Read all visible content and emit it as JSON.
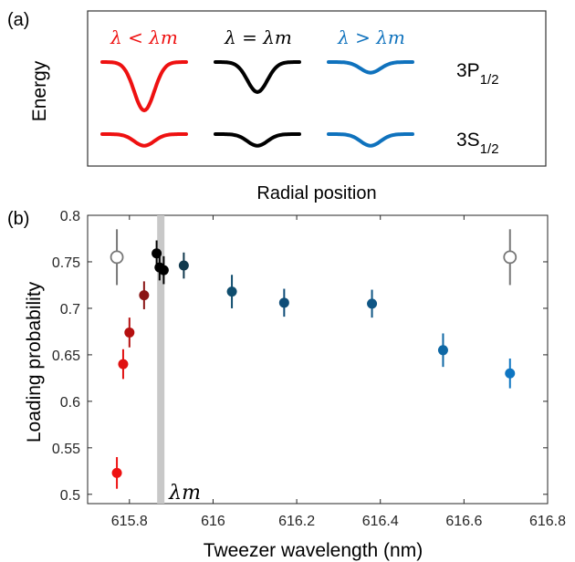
{
  "panel_a": {
    "tag": "(a)",
    "ylabel": "Energy",
    "xlabel": "Radial position",
    "columns": [
      {
        "label": "λ < λm",
        "color": "#ee1111",
        "depth_p": 1.0,
        "depth_s": 0.6
      },
      {
        "label": "λ = λm",
        "color": "#000000",
        "depth_p": 0.62,
        "depth_s": 0.6
      },
      {
        "label": "λ > λm",
        "color": "#0f72bd",
        "depth_p": 0.22,
        "depth_s": 0.6
      }
    ],
    "level_labels": [
      {
        "main": "3P",
        "sub": "1/2"
      },
      {
        "main": "3S",
        "sub": "1/2"
      }
    ]
  },
  "chart_data": {
    "type": "scatter",
    "panel_tag": "(b)",
    "xlabel": "Tweezer wavelength (nm)",
    "ylabel": "Loading probability",
    "xlim": [
      615.7,
      616.8
    ],
    "ylim": [
      0.49,
      0.8
    ],
    "xticks": [
      "615.8",
      "616",
      "616.2",
      "616.4",
      "616.6",
      "616.8"
    ],
    "yticks": [
      "0.5",
      "0.55",
      "0.6",
      "0.65",
      "0.7",
      "0.75",
      "0.8"
    ],
    "marker_label": "λm",
    "marker_x": 615.875,
    "points": [
      {
        "x": 615.77,
        "y": 0.523,
        "err": 0.017,
        "color": "#ee1111",
        "filled": true
      },
      {
        "x": 615.785,
        "y": 0.64,
        "err": 0.016,
        "color": "#e01010",
        "filled": true
      },
      {
        "x": 615.8,
        "y": 0.674,
        "err": 0.016,
        "color": "#b51010",
        "filled": true
      },
      {
        "x": 615.835,
        "y": 0.714,
        "err": 0.015,
        "color": "#8a1515",
        "filled": true
      },
      {
        "x": 615.865,
        "y": 0.759,
        "err": 0.014,
        "color": "#000000",
        "filled": true
      },
      {
        "x": 615.872,
        "y": 0.744,
        "err": 0.014,
        "color": "#000000",
        "filled": true
      },
      {
        "x": 615.882,
        "y": 0.741,
        "err": 0.015,
        "color": "#000000",
        "filled": true
      },
      {
        "x": 615.93,
        "y": 0.746,
        "err": 0.014,
        "color": "#123a4e",
        "filled": true
      },
      {
        "x": 616.045,
        "y": 0.718,
        "err": 0.018,
        "color": "#0f4d6e",
        "filled": true
      },
      {
        "x": 616.17,
        "y": 0.706,
        "err": 0.015,
        "color": "#0f4d78",
        "filled": true
      },
      {
        "x": 616.38,
        "y": 0.705,
        "err": 0.015,
        "color": "#0f5685",
        "filled": true
      },
      {
        "x": 616.55,
        "y": 0.655,
        "err": 0.018,
        "color": "#0f68a5",
        "filled": true
      },
      {
        "x": 616.71,
        "y": 0.63,
        "err": 0.016,
        "color": "#0f76c2",
        "filled": true
      },
      {
        "x": 615.77,
        "y": 0.755,
        "err": 0.03,
        "color": "#777777",
        "filled": false
      },
      {
        "x": 616.71,
        "y": 0.755,
        "err": 0.03,
        "color": "#777777",
        "filled": false
      }
    ]
  }
}
